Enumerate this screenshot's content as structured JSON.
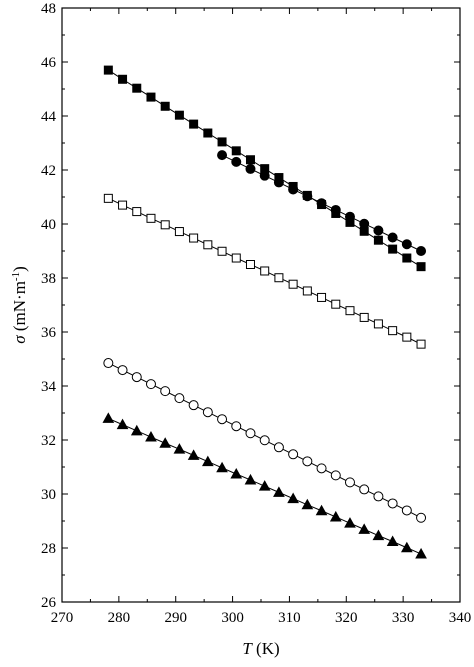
{
  "chart_data": {
    "type": "scatter",
    "xlabel": {
      "symbol": "T",
      "unit": " (K)"
    },
    "ylabel": {
      "symbol": "σ",
      "unit": " (mN·m",
      "exp": "-1",
      "close": ")"
    },
    "xlim": [
      270,
      340
    ],
    "ylim": [
      26,
      48
    ],
    "xticks": [
      270,
      280,
      290,
      300,
      310,
      320,
      330,
      340
    ],
    "yticks": [
      26,
      28,
      30,
      32,
      34,
      36,
      38,
      40,
      42,
      44,
      46,
      48
    ],
    "grid": false,
    "legend": "none",
    "series": [
      {
        "marker": "square-filled",
        "x": [
          278.15,
          280.65,
          283.15,
          285.65,
          288.15,
          290.65,
          293.15,
          295.65,
          298.15,
          300.65,
          303.15,
          305.65,
          308.15,
          310.65,
          313.15,
          315.65,
          318.15,
          320.65,
          323.15,
          325.65,
          328.15,
          330.65,
          333.15
        ],
        "y": [
          45.7,
          45.36,
          45.03,
          44.7,
          44.36,
          44.03,
          43.7,
          43.37,
          43.04,
          42.71,
          42.38,
          42.05,
          41.72,
          41.39,
          41.06,
          40.72,
          40.39,
          40.06,
          39.73,
          39.4,
          39.07,
          38.74,
          38.42
        ]
      },
      {
        "marker": "circle-filled",
        "x": [
          298.15,
          300.65,
          303.15,
          305.65,
          308.15,
          310.65,
          313.15,
          315.65,
          318.15,
          320.65,
          323.15,
          325.65,
          328.15,
          330.65,
          333.15
        ],
        "y": [
          42.55,
          42.3,
          42.04,
          41.79,
          41.54,
          41.28,
          41.03,
          40.77,
          40.52,
          40.27,
          40.01,
          39.76,
          39.5,
          39.25,
          39.0
        ]
      },
      {
        "marker": "square-open",
        "x": [
          278.15,
          280.65,
          283.15,
          285.65,
          288.15,
          290.65,
          293.15,
          295.65,
          298.15,
          300.65,
          303.15,
          305.65,
          308.15,
          310.65,
          313.15,
          315.65,
          318.15,
          320.65,
          323.15,
          325.65,
          328.15,
          330.65,
          333.15
        ],
        "y": [
          40.95,
          40.7,
          40.46,
          40.21,
          39.97,
          39.72,
          39.48,
          39.23,
          38.99,
          38.74,
          38.5,
          38.26,
          38.01,
          37.77,
          37.52,
          37.28,
          37.03,
          36.79,
          36.54,
          36.3,
          36.05,
          35.81,
          35.55
        ]
      },
      {
        "marker": "circle-open",
        "x": [
          278.15,
          280.65,
          283.15,
          285.65,
          288.15,
          290.65,
          293.15,
          295.65,
          298.15,
          300.65,
          303.15,
          305.65,
          308.15,
          310.65,
          313.15,
          315.65,
          318.15,
          320.65,
          323.15,
          325.65,
          328.15,
          330.65,
          333.15
        ],
        "y": [
          34.85,
          34.59,
          34.33,
          34.07,
          33.81,
          33.55,
          33.29,
          33.03,
          32.77,
          32.51,
          32.25,
          31.99,
          31.73,
          31.47,
          31.21,
          30.95,
          30.69,
          30.43,
          30.17,
          29.91,
          29.65,
          29.39,
          29.12
        ]
      },
      {
        "marker": "triangle-filled",
        "x": [
          278.15,
          280.65,
          283.15,
          285.65,
          288.15,
          290.65,
          293.15,
          295.65,
          298.15,
          300.65,
          303.15,
          305.65,
          308.15,
          310.65,
          313.15,
          315.65,
          318.15,
          320.65,
          323.15,
          325.65,
          328.15,
          330.65,
          333.15
        ],
        "y": [
          32.8,
          32.57,
          32.34,
          32.11,
          31.88,
          31.66,
          31.43,
          31.2,
          30.97,
          30.74,
          30.52,
          30.29,
          30.06,
          29.83,
          29.6,
          29.38,
          29.15,
          28.92,
          28.69,
          28.46,
          28.24,
          28.01,
          27.78
        ]
      }
    ]
  }
}
